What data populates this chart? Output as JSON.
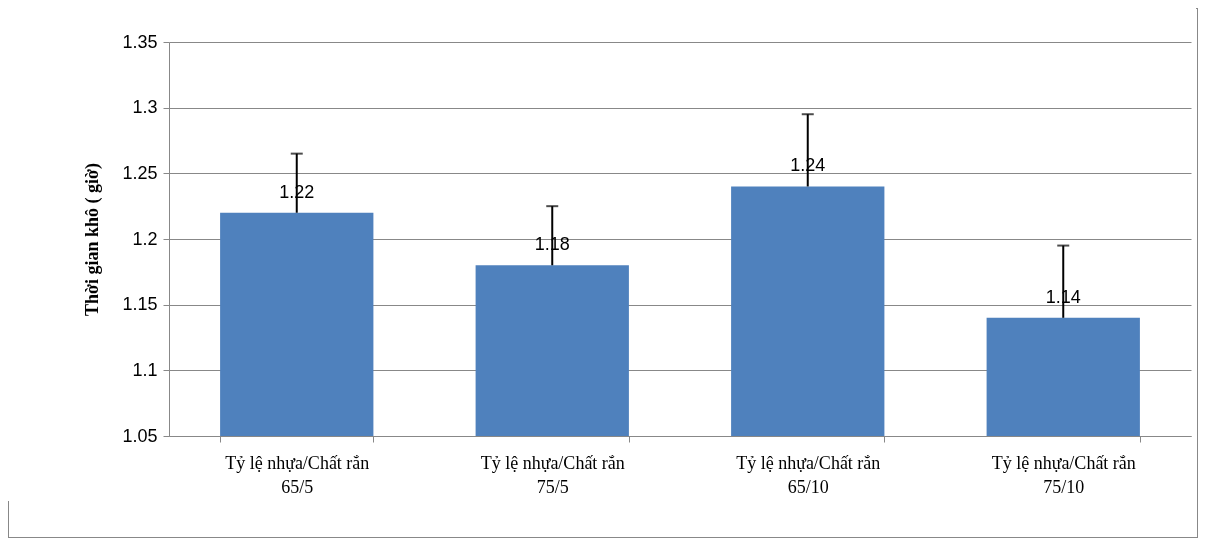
{
  "chart_data": {
    "type": "bar",
    "ylabel": "Thời gian khô  ( giờ)",
    "categories": [
      "Tỷ lệ nhựa/Chất rắn 65/5",
      "Tỷ lệ nhựa/Chất rắn 75/5",
      "Tỷ lệ nhựa/Chất rắn 65/10",
      "Tỷ lệ nhựa/Chất rắn 75/10"
    ],
    "values": [
      1.22,
      1.18,
      1.24,
      1.14
    ],
    "errors": [
      [
        1.22,
        1.265
      ],
      [
        1.18,
        1.225
      ],
      [
        1.24,
        1.295
      ],
      [
        1.14,
        1.195
      ]
    ],
    "color": "#4f81bd",
    "ylim": [
      1.05,
      1.35
    ],
    "yticks": [
      1.05,
      1.1,
      1.15,
      1.2,
      1.25,
      1.3,
      1.35
    ],
    "grid": "y",
    "data_labels": true
  }
}
